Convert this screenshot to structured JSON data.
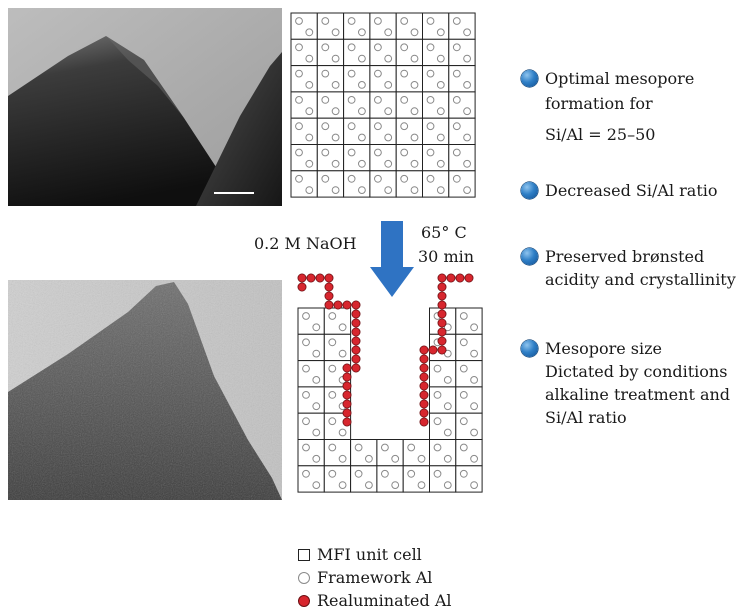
{
  "process": {
    "reagent": "0.2 M NaOH",
    "temperature": "65° C",
    "duration": "30 min"
  },
  "bullets": [
    {
      "lines": [
        "Optimal mesopore",
        "formation for",
        "Si/Al = 25–50"
      ]
    },
    {
      "lines": [
        "Decreased Si/Al ratio"
      ]
    },
    {
      "lines": [
        "Preserved brønsted",
        "acidity and crystallinity"
      ]
    },
    {
      "lines": [
        "Mesopore size",
        "Dictated by conditions",
        "alkaline treatment and",
        "Si/Al ratio"
      ]
    }
  ],
  "legend": {
    "unit_cell": "MFI unit cell",
    "framework_al": "Framework Al",
    "realuminated_al": "Realuminated Al"
  },
  "colors": {
    "arrow": "#2f73c3",
    "bullet": "#2f7fc6",
    "realuminated": "#d7262e",
    "framework": "#8a8a8a"
  }
}
